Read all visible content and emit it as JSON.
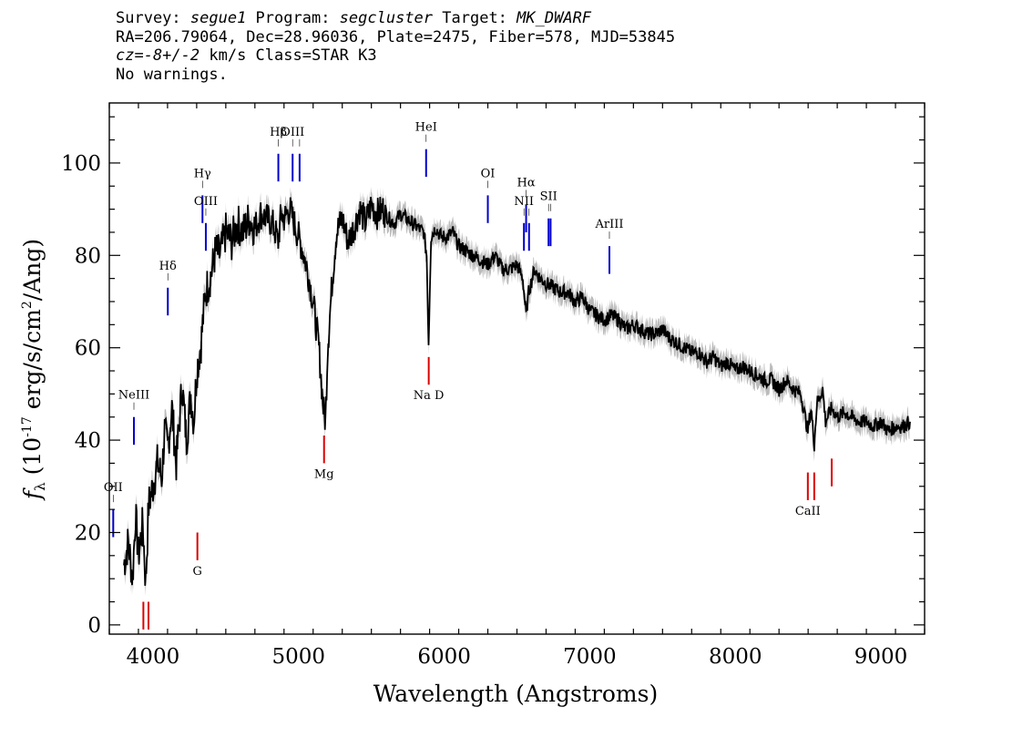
{
  "header": {
    "line1": [
      {
        "text": "Survey: ",
        "italic": false
      },
      {
        "text": "segue1",
        "italic": true
      },
      {
        "text": " Program: ",
        "italic": false
      },
      {
        "text": "segcluster",
        "italic": true
      },
      {
        "text": " Target: ",
        "italic": false
      },
      {
        "text": "MK_DWARF",
        "italic": true
      }
    ],
    "line2": "RA=206.79064, Dec=28.96036, Plate=2475, Fiber=578, MJD=53845",
    "line3": [
      {
        "text": "cz=-8+/-2",
        "italic": true
      },
      {
        "text": " km/s Class=STAR K3",
        "italic": false
      }
    ],
    "line4": "No warnings."
  },
  "chart_data": {
    "type": "line",
    "xlabel": "Wavelength (Angstroms)",
    "ylabel": "fλ (10^-17 erg/s/cm^2/Ang)",
    "xlim": [
      3700,
      9300
    ],
    "ylim": [
      -2,
      113
    ],
    "x_ticks": [
      4000,
      5000,
      6000,
      7000,
      8000,
      9000
    ],
    "y_ticks": [
      0,
      20,
      40,
      60,
      80,
      100
    ],
    "grid": false,
    "colors": {
      "spectrum": "#000000",
      "error_band": "#bbbbbb",
      "emission_lines": "#0000cc",
      "absorption_lines": "#dd0000"
    },
    "series": [
      {
        "x": [
          3800,
          3830,
          3860,
          3880,
          3900,
          3930,
          3950,
          3970,
          4000,
          4030,
          4060,
          4080,
          4100,
          4130,
          4160,
          4200,
          4230,
          4260,
          4280,
          4300,
          4330,
          4360,
          4400,
          4430,
          4460,
          4500,
          4540,
          4580,
          4620,
          4660,
          4700,
          4740,
          4780,
          4820,
          4860,
          4880,
          4900,
          4940,
          4980,
          5020,
          5060,
          5100,
          5140,
          5170,
          5185,
          5200,
          5230,
          5260,
          5300,
          5340,
          5380,
          5420,
          5460,
          5500,
          5540,
          5580,
          5620,
          5660,
          5700,
          5740,
          5780,
          5820,
          5860,
          5880,
          5893,
          5910,
          5940,
          5980,
          6020,
          6060,
          6100,
          6150,
          6200,
          6250,
          6300,
          6350,
          6400,
          6450,
          6500,
          6540,
          6563,
          6580,
          6620,
          6660,
          6700,
          6750,
          6800,
          6850,
          6900,
          6950,
          7000,
          7050,
          7100,
          7150,
          7200,
          7250,
          7300,
          7350,
          7400,
          7450,
          7500,
          7550,
          7600,
          7650,
          7700,
          7750,
          7800,
          7850,
          7900,
          7950,
          8000,
          8050,
          8100,
          8150,
          8200,
          8250,
          8300,
          8350,
          8400,
          8450,
          8498,
          8520,
          8542,
          8560,
          8600,
          8620,
          8662,
          8700,
          8750,
          8800,
          8850,
          8900,
          8950,
          9000,
          9050,
          9100,
          9150,
          9200
        ],
        "y": [
          13,
          18,
          10,
          24,
          15,
          22,
          9,
          26,
          30,
          35,
          32,
          42,
          38,
          47,
          35,
          52,
          40,
          50,
          44,
          55,
          61,
          72,
          76,
          81,
          80,
          85,
          83,
          87,
          85,
          88,
          86,
          89,
          88,
          87,
          83,
          89,
          88,
          90,
          86,
          82,
          77,
          70,
          60,
          47,
          44,
          60,
          74,
          85,
          88,
          83,
          86,
          90,
          87,
          91,
          89,
          90,
          88,
          87,
          89,
          88,
          87,
          86,
          85,
          80,
          61,
          84,
          86,
          84,
          84,
          85,
          82,
          81,
          80,
          79,
          78,
          80,
          77,
          77,
          78,
          75,
          67,
          72,
          77,
          75,
          74,
          73,
          72,
          72,
          70,
          71,
          68,
          67,
          66,
          67,
          66,
          64,
          65,
          64,
          63,
          63,
          64,
          62,
          61,
          60,
          59,
          59,
          57,
          58,
          56,
          57,
          55,
          56,
          55,
          54,
          53,
          53,
          51,
          53,
          51,
          50,
          42,
          47,
          39,
          48,
          51,
          44,
          47,
          45,
          46,
          45,
          44,
          44,
          43,
          44,
          42,
          43,
          43,
          44
        ]
      }
    ],
    "emission_lines": [
      {
        "label": "OII",
        "wavelength": 3727,
        "y_top": 25,
        "y_bottom": 19
      },
      {
        "label": "NeIII",
        "wavelength": 3869,
        "y_top": 45,
        "y_bottom": 39
      },
      {
        "label": "Hδ",
        "wavelength": 4102,
        "y_top": 73,
        "y_bottom": 67
      },
      {
        "label": "Hγ",
        "wavelength": 4340,
        "y_top": 93,
        "y_bottom": 87
      },
      {
        "label": "OIII",
        "wavelength": 4363,
        "y_top": 87,
        "y_bottom": 81
      },
      {
        "label": "Hβ",
        "wavelength": 4861,
        "y_top": 102,
        "y_bottom": 96
      },
      {
        "label": "OIII",
        "wavelength": 4959,
        "y_top": 102,
        "y_bottom": 96
      },
      {
        "label": "OIII",
        "wavelength": 5007,
        "y_top": 102,
        "y_bottom": 96
      },
      {
        "label": "HeI",
        "wavelength": 5876,
        "y_top": 103,
        "y_bottom": 97
      },
      {
        "label": "OI",
        "wavelength": 6300,
        "y_top": 93,
        "y_bottom": 87
      },
      {
        "label": "NII",
        "wavelength": 6548,
        "y_top": 87,
        "y_bottom": 81
      },
      {
        "label": "Hα",
        "wavelength": 6563,
        "y_top": 91,
        "y_bottom": 85
      },
      {
        "label": "NII",
        "wavelength": 6583,
        "y_top": 87,
        "y_bottom": 81
      },
      {
        "label": "SII",
        "wavelength": 6717,
        "y_top": 88,
        "y_bottom": 82
      },
      {
        "label": "SII",
        "wavelength": 6731,
        "y_top": 88,
        "y_bottom": 82
      },
      {
        "label": "ArIII",
        "wavelength": 7135,
        "y_top": 82,
        "y_bottom": 76
      }
    ],
    "absorption_lines": [
      {
        "label": "",
        "wavelength": 3934,
        "y_top": 5,
        "y_bottom": -1
      },
      {
        "label": "",
        "wavelength": 3969,
        "y_top": 5,
        "y_bottom": -1
      },
      {
        "label": "G",
        "wavelength": 4305,
        "y_top": 20,
        "y_bottom": 14
      },
      {
        "label": "Mg",
        "wavelength": 5175,
        "y_top": 41,
        "y_bottom": 35
      },
      {
        "label": "Na D",
        "wavelength": 5894,
        "y_top": 58,
        "y_bottom": 52
      },
      {
        "label": "CaII",
        "wavelength": 8498,
        "y_top": 33,
        "y_bottom": 27
      },
      {
        "label": "CaII",
        "wavelength": 8542,
        "y_top": 33,
        "y_bottom": 27
      },
      {
        "label": "CaII",
        "wavelength": 8662,
        "y_top": 36,
        "y_bottom": 30
      }
    ]
  }
}
